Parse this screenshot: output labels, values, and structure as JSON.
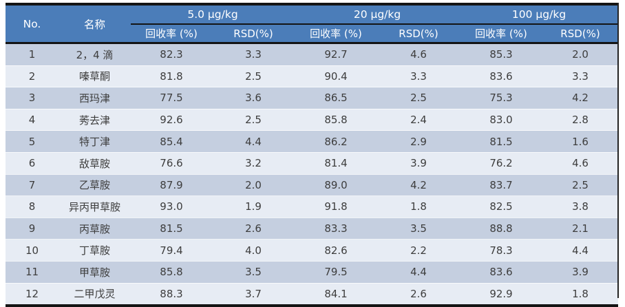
{
  "table": {
    "columns": {
      "no": "No.",
      "name": "名称"
    },
    "concentration_groups": [
      {
        "label": "5.0 μg/kg"
      },
      {
        "label": "20 μg/kg"
      },
      {
        "label": "100 μg/kg"
      }
    ],
    "sub_headers": {
      "recovery": "回收率 (%)",
      "rsd": "RSD(%)"
    },
    "rows": [
      {
        "no": "1",
        "name": "2，4 滴",
        "values": [
          "82.3",
          "3.3",
          "92.7",
          "4.6",
          "85.3",
          "2.0"
        ]
      },
      {
        "no": "2",
        "name": "嗪草酮",
        "values": [
          "81.8",
          "2.5",
          "90.4",
          "3.3",
          "83.6",
          "3.3"
        ]
      },
      {
        "no": "3",
        "name": "西玛津",
        "values": [
          "77.5",
          "3.6",
          "86.5",
          "2.5",
          "75.3",
          "4.2"
        ]
      },
      {
        "no": "4",
        "name": "莠去津",
        "values": [
          "92.6",
          "2.5",
          "85.8",
          "2.4",
          "83.0",
          "2.8"
        ]
      },
      {
        "no": "5",
        "name": "特丁津",
        "values": [
          "85.4",
          "4.4",
          "86.2",
          "2.9",
          "81.5",
          "1.6"
        ]
      },
      {
        "no": "6",
        "name": "敌草胺",
        "values": [
          "76.6",
          "3.2",
          "81.4",
          "3.9",
          "76.2",
          "4.6"
        ]
      },
      {
        "no": "7",
        "name": "乙草胺",
        "values": [
          "87.9",
          "2.0",
          "89.0",
          "4.2",
          "83.7",
          "2.5"
        ]
      },
      {
        "no": "8",
        "name": "异丙甲草胺",
        "values": [
          "93.0",
          "1.9",
          "91.8",
          "1.8",
          "82.5",
          "3.8"
        ]
      },
      {
        "no": "9",
        "name": "丙草胺",
        "values": [
          "81.5",
          "2.6",
          "83.3",
          "3.5",
          "88.8",
          "2.1"
        ]
      },
      {
        "no": "10",
        "name": "丁草胺",
        "values": [
          "79.4",
          "4.0",
          "82.6",
          "2.2",
          "78.3",
          "4.4"
        ]
      },
      {
        "no": "11",
        "name": "甲草胺",
        "values": [
          "85.8",
          "3.5",
          "79.5",
          "4.4",
          "83.6",
          "3.9"
        ]
      },
      {
        "no": "12",
        "name": "二甲戊灵",
        "values": [
          "88.3",
          "3.7",
          "84.1",
          "2.6",
          "92.9",
          "1.8"
        ]
      }
    ]
  },
  "colors": {
    "header_bg": "#4b7db9",
    "header_text": "#ffffff",
    "row_odd_bg": "#c5cfe0",
    "row_even_bg": "#e7ecf4",
    "rule": "#141414",
    "body_text": "#3d3d3d"
  }
}
